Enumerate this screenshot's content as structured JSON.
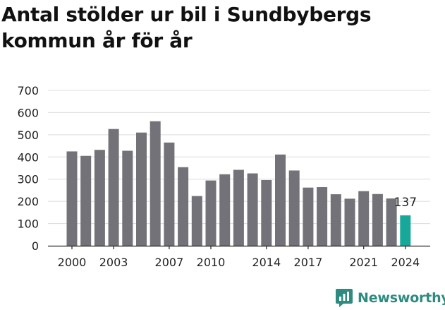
{
  "title": "Antal stölder ur bil i Sundbybergs kommun år för år",
  "brand": {
    "name": "Newsworthy",
    "color": "#2e8b80"
  },
  "chart_data": {
    "type": "bar",
    "title": "Antal stölder ur bil i Sundbybergs kommun år för år",
    "xlabel": "",
    "ylabel": "",
    "categories": [
      "2000",
      "2001",
      "2002",
      "2003",
      "2004",
      "2005",
      "2006",
      "2007",
      "2008",
      "2009",
      "2010",
      "2011",
      "2012",
      "2013",
      "2014",
      "2015",
      "2016",
      "2017",
      "2018",
      "2019",
      "2020",
      "2021",
      "2022",
      "2023",
      "2024"
    ],
    "values": [
      425,
      405,
      432,
      526,
      428,
      510,
      561,
      465,
      354,
      224,
      294,
      322,
      342,
      326,
      296,
      411,
      339,
      262,
      264,
      232,
      212,
      246,
      233,
      213,
      137
    ],
    "ylim": [
      0,
      700
    ],
    "yticks": [
      0,
      100,
      200,
      300,
      400,
      500,
      600,
      700
    ],
    "xtick_labels": [
      "2000",
      "2003",
      "2007",
      "2010",
      "2014",
      "2017",
      "2021",
      "2024"
    ],
    "grid": true,
    "colors": {
      "default": "#737278",
      "highlight": "#17a89a"
    },
    "highlight": {
      "category": "2024",
      "label": "137"
    }
  }
}
